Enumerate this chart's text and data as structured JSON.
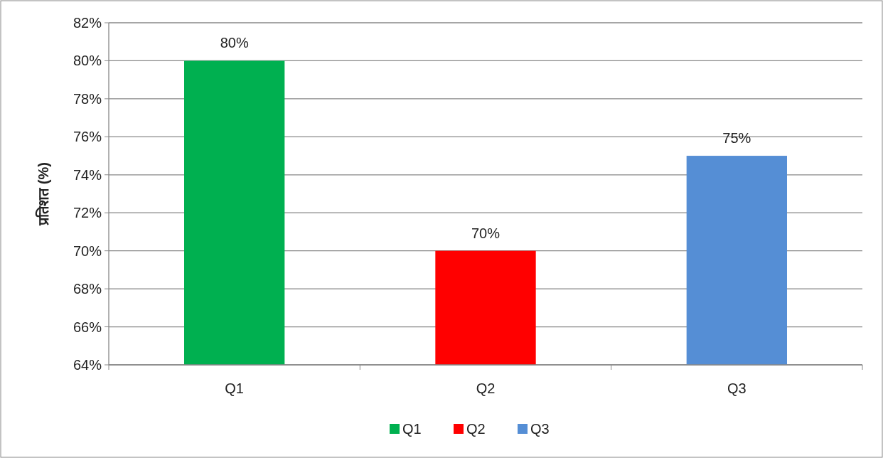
{
  "chart_data": {
    "type": "bar",
    "ylabel": "प्रतिशत  (%)",
    "categories": [
      "Q1",
      "Q2",
      "Q3"
    ],
    "series": [
      {
        "name": "Q1",
        "color": "#00b050",
        "values": [
          80,
          null,
          null
        ],
        "value_labels": [
          "80%",
          null,
          null
        ]
      },
      {
        "name": "Q2",
        "color": "#ff0000",
        "values": [
          null,
          70,
          null
        ],
        "value_labels": [
          null,
          "70%",
          null
        ]
      },
      {
        "name": "Q3",
        "color": "#558ed5",
        "values": [
          null,
          null,
          75
        ],
        "value_labels": [
          null,
          null,
          "75%"
        ]
      }
    ],
    "ylim": [
      64,
      82
    ],
    "yticks": [
      {
        "value": 64,
        "label": "64%"
      },
      {
        "value": 66,
        "label": "66%"
      },
      {
        "value": 68,
        "label": "68%"
      },
      {
        "value": 70,
        "label": "70%"
      },
      {
        "value": 72,
        "label": "72%"
      },
      {
        "value": 74,
        "label": "74%"
      },
      {
        "value": 76,
        "label": "76%"
      },
      {
        "value": 78,
        "label": "78%"
      },
      {
        "value": 80,
        "label": "80%"
      },
      {
        "value": 82,
        "label": "82%"
      }
    ],
    "grid": "y",
    "legend": "bottom"
  }
}
